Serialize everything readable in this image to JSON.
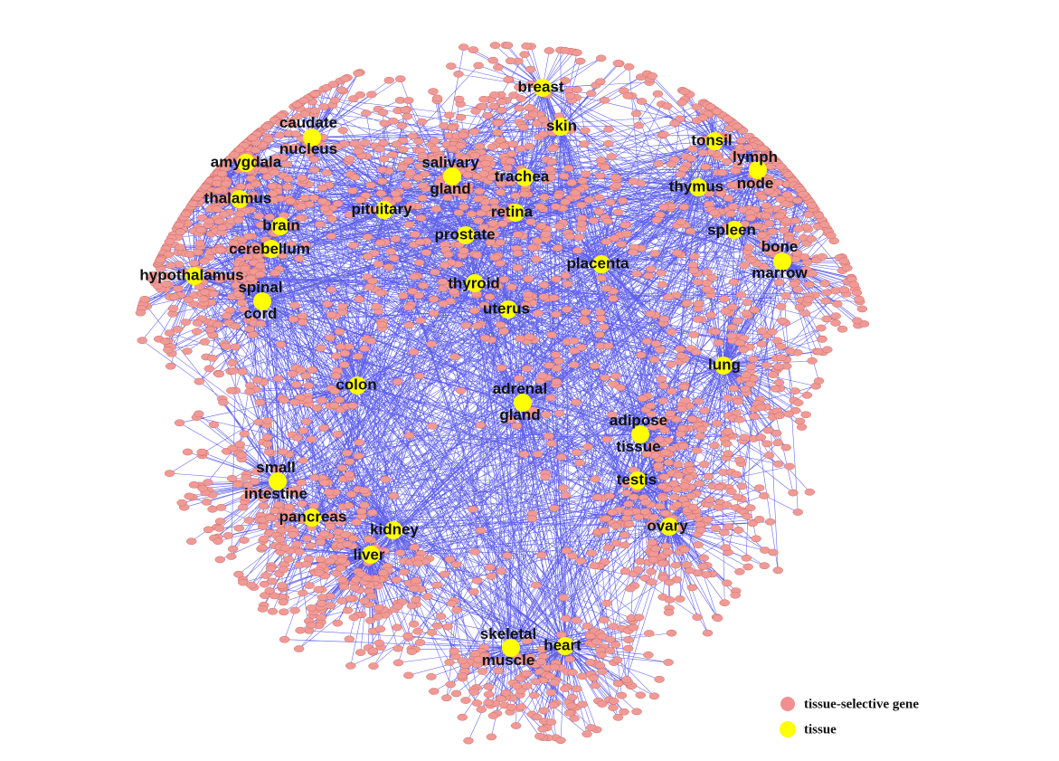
{
  "nodes": [
    {
      "lines": [
        "breast"
      ]
    },
    {
      "lines": [
        "skin"
      ]
    },
    {
      "lines": [
        "caudate",
        "nucleus"
      ]
    },
    {
      "lines": [
        "amygdala"
      ]
    },
    {
      "lines": [
        "salivary",
        "gland"
      ]
    },
    {
      "lines": [
        "trachea"
      ]
    },
    {
      "lines": [
        "tonsil"
      ]
    },
    {
      "lines": [
        "lymph",
        "node"
      ]
    },
    {
      "lines": [
        "thymus"
      ]
    },
    {
      "lines": [
        "thalamus"
      ]
    },
    {
      "lines": [
        "pituitary"
      ]
    },
    {
      "lines": [
        "brain"
      ]
    },
    {
      "lines": [
        "retina"
      ]
    },
    {
      "lines": [
        "prostate"
      ]
    },
    {
      "lines": [
        "spleen"
      ]
    },
    {
      "lines": [
        "cerebellum"
      ]
    },
    {
      "lines": [
        "bone",
        "marrow"
      ]
    },
    {
      "lines": [
        "hypothalamus"
      ]
    },
    {
      "lines": [
        "placenta"
      ]
    },
    {
      "lines": [
        "spinal",
        "cord"
      ]
    },
    {
      "lines": [
        "thyroid"
      ]
    },
    {
      "lines": [
        "uterus"
      ]
    },
    {
      "lines": [
        "lung"
      ]
    },
    {
      "lines": [
        "colon"
      ]
    },
    {
      "lines": [
        "adrenal",
        "gland"
      ]
    },
    {
      "lines": [
        "adipose",
        "tissue"
      ]
    },
    {
      "lines": [
        "small",
        "intestine"
      ]
    },
    {
      "lines": [
        "testis"
      ]
    },
    {
      "lines": [
        "pancreas"
      ]
    },
    {
      "lines": [
        "kidney"
      ]
    },
    {
      "lines": [
        "ovary"
      ]
    },
    {
      "lines": [
        "liver"
      ]
    },
    {
      "lines": [
        "skeletal",
        "muscle"
      ]
    },
    {
      "lines": [
        "heart"
      ]
    }
  ],
  "legend": {
    "gene": "tissue-selective gene",
    "tissue": "tissue"
  }
}
